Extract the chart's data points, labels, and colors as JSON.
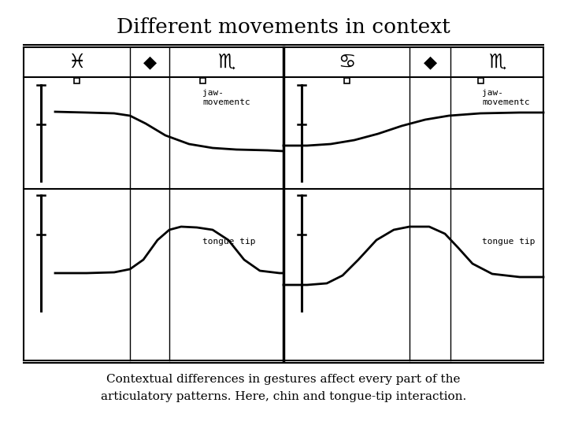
{
  "title": "Different movements in context",
  "bottom_text_line1": "Contextual differences in gestures affect every part of the",
  "bottom_text_line2": "articulatory patterns. Here, chin and tongue-tip interaction.",
  "bg_color": "#ffffff",
  "line_color": "#000000",
  "label_jaw": "jaw-\nmovementc",
  "label_tongue": "tongue tip",
  "label_jaw2": "jaw-\nmovementc",
  "label_tongue2": "tongue tip",
  "sym_pisces": "♓",
  "sym_scorpio": "♏",
  "sym_cancer": "♋",
  "sym_diamond": "◆"
}
